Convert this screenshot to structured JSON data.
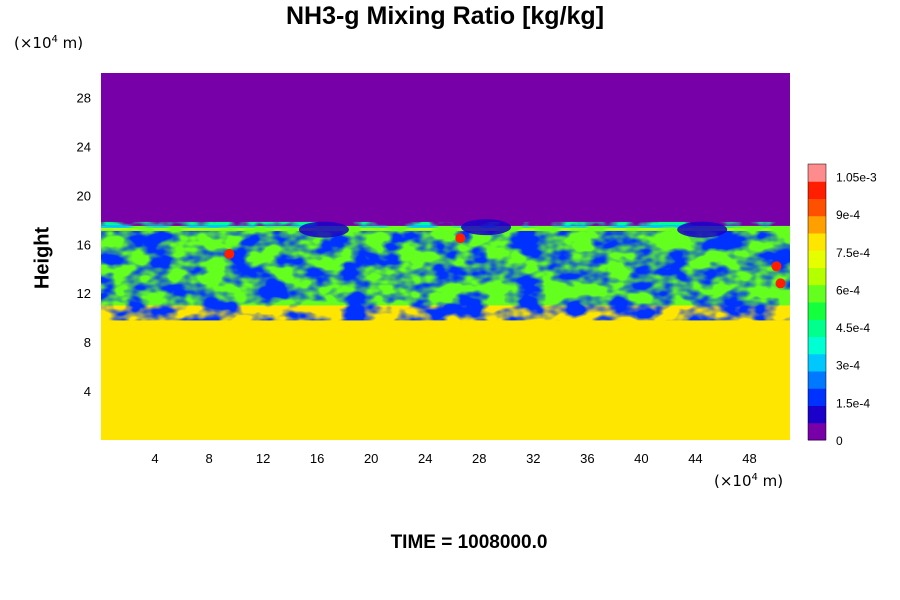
{
  "chart_data": {
    "type": "heatmap",
    "title": "NH3-g Mixing Ratio [kg/kg]",
    "xlabel": "",
    "ylabel": "Height",
    "x_unit_base": "(×10",
    "x_unit_exp": "4",
    "x_unit_tail": " m)",
    "y_unit_base": "(×10",
    "y_unit_exp": "4",
    "y_unit_tail": " m)",
    "xlim": [
      0,
      51
    ],
    "ylim": [
      0,
      30
    ],
    "x_ticks": [
      4,
      8,
      12,
      16,
      20,
      24,
      28,
      32,
      36,
      40,
      44,
      48
    ],
    "y_ticks": [
      4,
      8,
      12,
      16,
      20,
      24,
      28
    ],
    "colorbar": {
      "range": [
        0,
        0.0011
      ],
      "labels": [
        "0",
        "1.5e-4",
        "3e-4",
        "4.5e-4",
        "6e-4",
        "7.5e-4",
        "9e-4",
        "1.05e-3"
      ],
      "label_values": [
        0,
        0.00015,
        0.0003,
        0.00045,
        0.0006,
        0.00075,
        0.0009,
        0.00105
      ],
      "colors": [
        "#7800a8",
        "#1a00c8",
        "#0032ff",
        "#0078ff",
        "#00c8ff",
        "#00ffd2",
        "#00ff8c",
        "#14ff3c",
        "#64ff1e",
        "#b4ff00",
        "#e6ff00",
        "#ffe600",
        "#ffa000",
        "#ff5000",
        "#ff1e00",
        "#ff8c8c"
      ]
    },
    "regions": {
      "upper_value": 0,
      "lower_value": 0.00076,
      "lower_top_height": 11,
      "cloud_top_height": 17.5
    },
    "footer": "TIME = 1008000.0"
  }
}
